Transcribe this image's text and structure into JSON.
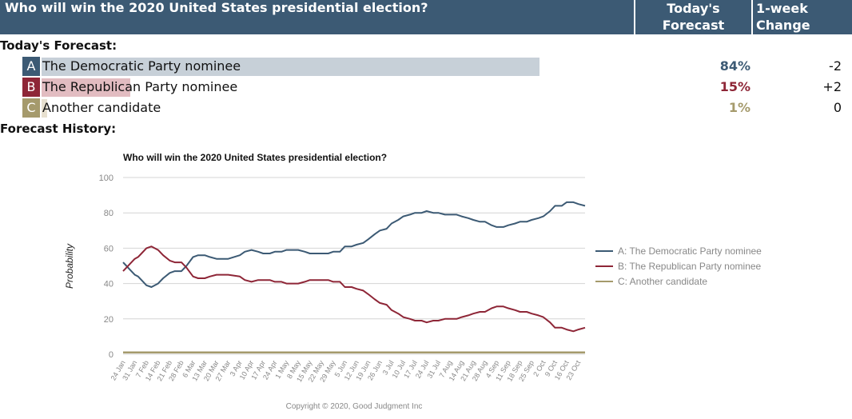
{
  "header": {
    "question": "Who will win the 2020 United States presidential election?",
    "today_line1": "Today's",
    "today_line2": "Forecast",
    "week_line1": "1-week",
    "week_line2": "Change"
  },
  "sections": {
    "today": "Today's Forecast:",
    "history": "Forecast History:"
  },
  "options": [
    {
      "letter": "A",
      "label": "The Democratic Party nominee",
      "forecast": "84%",
      "change": "-2",
      "color": "#3c5a74",
      "bar_color": "#c7d0d8",
      "value": 84
    },
    {
      "letter": "B",
      "label": "The Republican Party nominee",
      "forecast": "15%",
      "change": "+2",
      "color": "#8e2637",
      "bar_color": "#e2bcc1",
      "value": 15
    },
    {
      "letter": "C",
      "label": "Another candidate",
      "forecast": "1%",
      "change": "0",
      "color": "#a59a6c",
      "bar_color": "#e7e0cf",
      "value": 1
    }
  ],
  "chart_data": {
    "type": "line",
    "title": "Who will win the 2020 United States presidential election?",
    "ylabel": "Probability",
    "xlabel": "",
    "ylim": [
      0,
      100
    ],
    "yticks": [
      0,
      20,
      40,
      60,
      80,
      100
    ],
    "grid": true,
    "legend_position": "right",
    "copyright": "Copyright © 2020, Good Judgment Inc",
    "xtick_labels": [
      "24 Jan",
      "31 Jan",
      "7 Feb",
      "14 Feb",
      "21 Feb",
      "28 Feb",
      "6 Mar",
      "13 Mar",
      "20 Mar",
      "27 Mar",
      "3 Apr",
      "10 Apr",
      "17 Apr",
      "24 Apr",
      "1 May",
      "8 May",
      "15 May",
      "22 May",
      "29 May",
      "5 Jun",
      "12 Jun",
      "19 Jun",
      "26 Jun",
      "3 Jul",
      "10 Jul",
      "17 Jul",
      "24 Jul",
      "31 Jul",
      "7 Aug",
      "14 Aug",
      "21 Aug",
      "28 Aug",
      "4 Sep",
      "11 Sep",
      "18 Sep",
      "25 Sep",
      "2 Oct",
      "9 Oct",
      "16 Oct",
      "23 Oct"
    ],
    "x_start": "24 Jan",
    "x_end": "27 Oct",
    "series": [
      {
        "name": "A: The Democratic Party nominee",
        "color": "#3c5a74",
        "x": [
          "24 Jan",
          "26 Jan",
          "28 Jan",
          "31 Jan",
          "2 Feb",
          "4 Feb",
          "7 Feb",
          "10 Feb",
          "14 Feb",
          "17 Feb",
          "21 Feb",
          "24 Feb",
          "28 Feb",
          "2 Mar",
          "6 Mar",
          "9 Mar",
          "13 Mar",
          "16 Mar",
          "20 Mar",
          "27 Mar",
          "3 Apr",
          "6 Apr",
          "10 Apr",
          "14 Apr",
          "17 Apr",
          "21 Apr",
          "24 Apr",
          "28 Apr",
          "1 May",
          "5 May",
          "8 May",
          "12 May",
          "15 May",
          "19 May",
          "22 May",
          "26 May",
          "29 May",
          "2 Jun",
          "5 Jun",
          "9 Jun",
          "12 Jun",
          "16 Jun",
          "19 Jun",
          "23 Jun",
          "26 Jun",
          "30 Jun",
          "3 Jul",
          "7 Jul",
          "10 Jul",
          "14 Jul",
          "17 Jul",
          "21 Jul",
          "24 Jul",
          "28 Jul",
          "31 Jul",
          "4 Aug",
          "7 Aug",
          "11 Aug",
          "14 Aug",
          "18 Aug",
          "21 Aug",
          "25 Aug",
          "28 Aug",
          "1 Sep",
          "4 Sep",
          "8 Sep",
          "11 Sep",
          "15 Sep",
          "18 Sep",
          "22 Sep",
          "25 Sep",
          "29 Sep",
          "2 Oct",
          "6 Oct",
          "9 Oct",
          "13 Oct",
          "16 Oct",
          "20 Oct",
          "23 Oct",
          "27 Oct"
        ],
        "values": [
          52,
          50,
          48,
          45,
          44,
          42,
          39,
          38,
          40,
          43,
          46,
          47,
          47,
          50,
          55,
          56,
          56,
          55,
          54,
          54,
          56,
          58,
          59,
          58,
          57,
          57,
          58,
          58,
          59,
          59,
          59,
          58,
          57,
          57,
          57,
          57,
          58,
          58,
          61,
          61,
          62,
          63,
          65,
          68,
          70,
          71,
          74,
          76,
          78,
          79,
          80,
          80,
          81,
          80,
          80,
          79,
          79,
          79,
          78,
          77,
          76,
          75,
          75,
          73,
          72,
          72,
          73,
          74,
          75,
          75,
          76,
          77,
          78,
          81,
          84,
          84,
          86,
          86,
          85,
          84
        ]
      },
      {
        "name": "B: The Republican Party nominee",
        "color": "#8e2637",
        "x": [
          "24 Jan",
          "26 Jan",
          "28 Jan",
          "31 Jan",
          "2 Feb",
          "4 Feb",
          "7 Feb",
          "10 Feb",
          "14 Feb",
          "17 Feb",
          "21 Feb",
          "24 Feb",
          "28 Feb",
          "2 Mar",
          "6 Mar",
          "9 Mar",
          "13 Mar",
          "16 Mar",
          "20 Mar",
          "27 Mar",
          "3 Apr",
          "6 Apr",
          "10 Apr",
          "14 Apr",
          "17 Apr",
          "21 Apr",
          "24 Apr",
          "28 Apr",
          "1 May",
          "5 May",
          "8 May",
          "12 May",
          "15 May",
          "19 May",
          "22 May",
          "26 May",
          "29 May",
          "2 Jun",
          "5 Jun",
          "9 Jun",
          "12 Jun",
          "16 Jun",
          "19 Jun",
          "23 Jun",
          "26 Jun",
          "30 Jun",
          "3 Jul",
          "7 Jul",
          "10 Jul",
          "14 Jul",
          "17 Jul",
          "21 Jul",
          "24 Jul",
          "28 Jul",
          "31 Jul",
          "4 Aug",
          "7 Aug",
          "11 Aug",
          "14 Aug",
          "18 Aug",
          "21 Aug",
          "25 Aug",
          "28 Aug",
          "1 Sep",
          "4 Sep",
          "8 Sep",
          "11 Sep",
          "15 Sep",
          "18 Sep",
          "22 Sep",
          "25 Sep",
          "29 Sep",
          "2 Oct",
          "6 Oct",
          "9 Oct",
          "13 Oct",
          "16 Oct",
          "20 Oct",
          "23 Oct",
          "27 Oct"
        ],
        "values": [
          47,
          49,
          51,
          54,
          55,
          57,
          60,
          61,
          59,
          56,
          53,
          52,
          52,
          49,
          44,
          43,
          43,
          44,
          45,
          45,
          44,
          42,
          41,
          42,
          42,
          42,
          41,
          41,
          40,
          40,
          40,
          41,
          42,
          42,
          42,
          42,
          41,
          41,
          38,
          38,
          37,
          36,
          34,
          31,
          29,
          28,
          25,
          23,
          21,
          20,
          19,
          19,
          18,
          19,
          19,
          20,
          20,
          20,
          21,
          22,
          23,
          24,
          24,
          26,
          27,
          27,
          26,
          25,
          24,
          24,
          23,
          22,
          21,
          18,
          15,
          15,
          14,
          13,
          14,
          15
        ]
      },
      {
        "name": "C: Another candidate",
        "color": "#a59a6c",
        "x": [
          "24 Jan",
          "27 Oct"
        ],
        "values": [
          1,
          1
        ]
      }
    ]
  }
}
